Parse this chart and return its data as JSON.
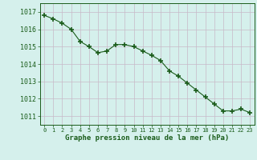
{
  "x": [
    0,
    1,
    2,
    3,
    4,
    5,
    6,
    7,
    8,
    9,
    10,
    11,
    12,
    13,
    14,
    15,
    16,
    17,
    18,
    19,
    20,
    21,
    22,
    23
  ],
  "y": [
    1016.8,
    1016.6,
    1016.35,
    1016.0,
    1015.3,
    1015.0,
    1014.65,
    1014.75,
    1015.12,
    1015.12,
    1015.0,
    1014.75,
    1014.5,
    1014.2,
    1013.6,
    1013.3,
    1012.9,
    1012.5,
    1012.1,
    1011.7,
    1011.3,
    1011.3,
    1011.4,
    1011.2
  ],
  "line_color": "#1a5c1a",
  "marker_color": "#1a5c1a",
  "bg_color": "#d5f0ec",
  "grid_color": "#c8b8c8",
  "axis_label_color": "#1a5c1a",
  "tick_color": "#1a5c1a",
  "xlabel": "Graphe pression niveau de la mer (hPa)",
  "xlim": [
    -0.5,
    23.5
  ],
  "ylim": [
    1010.5,
    1017.5
  ],
  "yticks": [
    1011,
    1012,
    1013,
    1014,
    1015,
    1016,
    1017
  ],
  "xticks": [
    0,
    1,
    2,
    3,
    4,
    5,
    6,
    7,
    8,
    9,
    10,
    11,
    12,
    13,
    14,
    15,
    16,
    17,
    18,
    19,
    20,
    21,
    22,
    23
  ],
  "marker_size": 4,
  "line_width": 0.8,
  "xlabel_fontsize": 6.5,
  "ytick_fontsize": 6,
  "xtick_fontsize": 5
}
